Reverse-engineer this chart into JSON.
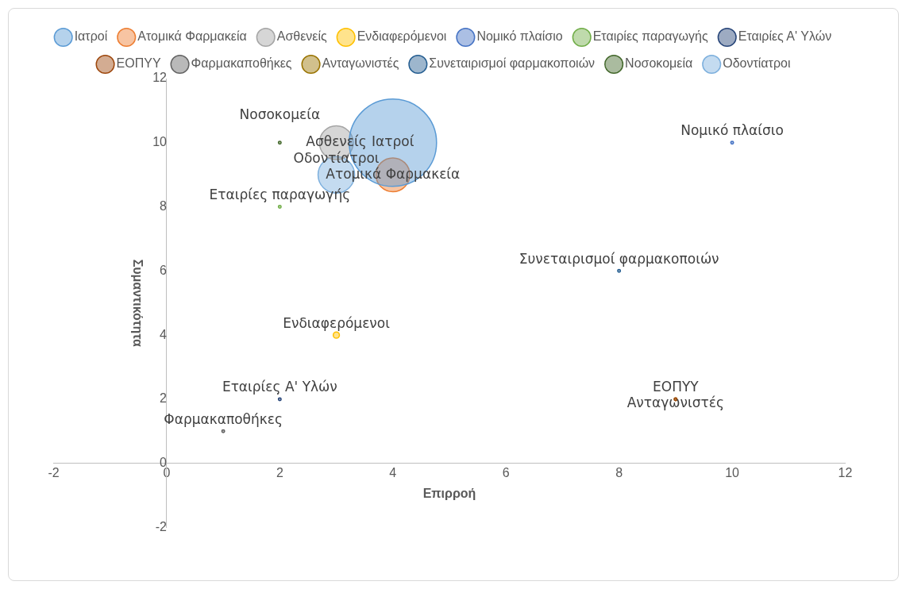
{
  "chart_data": {
    "type": "bubble",
    "xlabel": "Επιρροή",
    "ylabel": "Συμαντικότητα",
    "xlim": [
      -2,
      12
    ],
    "xticks": [
      -2,
      0,
      2,
      4,
      6,
      8,
      10,
      12
    ],
    "ylim": [
      -2,
      12
    ],
    "yticks": [
      -2,
      0,
      2,
      4,
      6,
      8,
      10,
      12
    ],
    "grid": false,
    "legend": "top",
    "series": [
      {
        "name": "Ιατροί",
        "color": "#5b9bd5",
        "x": [
          4
        ],
        "values": [
          10
        ],
        "sizes": [
          1
        ]
      },
      {
        "name": "Ατομικά Φαρμακεία",
        "color": "#ed7d31",
        "x": [
          4
        ],
        "values": [
          9
        ],
        "sizes": [
          0.15
        ]
      },
      {
        "name": "Ασθενείς",
        "color": "#a5a5a5",
        "x": [
          3
        ],
        "values": [
          10
        ],
        "sizes": [
          0.15
        ]
      },
      {
        "name": "Ενδιαφερόμενοι",
        "color": "#ffc000",
        "x": [
          3
        ],
        "values": [
          4
        ],
        "sizes": [
          0.005
        ]
      },
      {
        "name": "Νομικό πλαίσιο",
        "color": "#4472c4",
        "x": [
          10
        ],
        "values": [
          10
        ],
        "sizes": [
          0.001
        ]
      },
      {
        "name": "Εταιρίες παραγωγής",
        "color": "#70ad47",
        "x": [
          2
        ],
        "values": [
          8
        ],
        "sizes": [
          0.001
        ]
      },
      {
        "name": "Εταιρίες Α' Υλών",
        "color": "#264478",
        "x": [
          2
        ],
        "values": [
          2
        ],
        "sizes": [
          0.001
        ]
      },
      {
        "name": "ΕΟΠΥΥ",
        "color": "#9e480e",
        "x": [
          9
        ],
        "values": [
          2
        ],
        "sizes": [
          0.001
        ]
      },
      {
        "name": "Φαρμακαποθήκες",
        "color": "#636363",
        "x": [
          1
        ],
        "values": [
          1
        ],
        "sizes": [
          0.001
        ]
      },
      {
        "name": "Ανταγωνιστές",
        "color": "#997300",
        "x": [
          9
        ],
        "values": [
          2
        ],
        "sizes": [
          0.001
        ]
      },
      {
        "name": "Συνεταιρισμοί φαρμακοποιών",
        "color": "#255e91",
        "x": [
          8
        ],
        "values": [
          6
        ],
        "sizes": [
          0.001
        ]
      },
      {
        "name": "Νοσοκομεία",
        "color": "#43682b",
        "x": [
          2
        ],
        "values": [
          10
        ],
        "sizes": [
          0.001
        ]
      },
      {
        "name": "Οδοντίατροι",
        "color": "#7cafdd",
        "x": [
          3
        ],
        "values": [
          9
        ],
        "sizes": [
          0.175
        ]
      }
    ]
  }
}
